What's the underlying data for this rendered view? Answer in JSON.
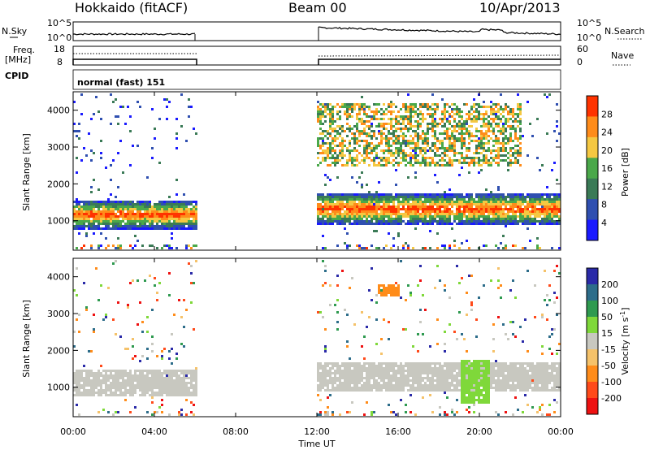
{
  "header": {
    "station": "Hokkaido (fitACF)",
    "beam": "Beam 00",
    "date": "10/Apr/2013"
  },
  "strips": {
    "nsky_label": "N.Sky",
    "nsearch_label": "N.Search",
    "noise_ticks": [
      "10^5",
      "10^0"
    ],
    "freq_label_1": "Freq.",
    "freq_label_2": "[MHz]",
    "freq_ticks": [
      "18",
      "8"
    ],
    "nave_label": "Nave",
    "nave_ticks": [
      "60",
      "0"
    ],
    "cpid_label": "CPID",
    "cpid_value": "normal (fast) 151"
  },
  "panels": {
    "ylabel": "Slant Range [km]",
    "y_ticks": [
      "1000",
      "2000",
      "3000",
      "4000"
    ],
    "xlabel": "Time UT",
    "x_ticks": [
      "00:00",
      "04:00",
      "08:00",
      "12:00",
      "16:00",
      "20:00",
      "00:00"
    ]
  },
  "power_bar": {
    "label": "Power [dB]",
    "ticks": [
      "4",
      "8",
      "12",
      "16",
      "20",
      "24",
      "28"
    ],
    "colors": [
      "#1a1aff",
      "#2f4fb0",
      "#3a7a56",
      "#4aa84a",
      "#f5c842",
      "#ff8c1a",
      "#ff3300"
    ]
  },
  "velocity_bar": {
    "label": "Velocity [m s",
    "label_sup": "-1",
    "label_end": "]",
    "ticks": [
      "200",
      "100",
      "50",
      "15",
      "-15",
      "-50",
      "-100",
      "-200"
    ],
    "colors": [
      "#2a2aa8",
      "#2d6d8a",
      "#2f9a50",
      "#7fd83a",
      "#c8c8c0",
      "#f5c26a",
      "#ff8c1a",
      "#ff4a1a",
      "#ee1111"
    ]
  },
  "chart_data": [
    {
      "type": "heatmap",
      "title": "Power [dB]",
      "xlabel": "Time UT",
      "ylabel": "Slant Range [km]",
      "xlim": [
        0,
        24
      ],
      "ylim": [
        200,
        4500
      ],
      "data_gaps_hours": [
        [
          6,
          12
        ]
      ],
      "echo_bands": [
        {
          "time_range": [
            0,
            6
          ],
          "range_km": [
            800,
            1600
          ],
          "peak_power_db": 28
        },
        {
          "time_range": [
            12,
            24
          ],
          "range_km": [
            900,
            1800
          ],
          "peak_power_db": 28
        },
        {
          "time_range": [
            12,
            22
          ],
          "range_km": [
            2500,
            4200
          ],
          "peak_power_db": 20
        }
      ]
    },
    {
      "type": "heatmap",
      "title": "Velocity [m s-1]",
      "xlabel": "Time UT",
      "ylabel": "Slant Range [km]",
      "xlim": [
        0,
        24
      ],
      "ylim": [
        200,
        4500
      ],
      "data_gaps_hours": [
        [
          6,
          12
        ]
      ],
      "echo_bands": [
        {
          "time_range": [
            0,
            6
          ],
          "range_km": [
            800,
            1500
          ],
          "velocity_ms": 0
        },
        {
          "time_range": [
            12,
            24
          ],
          "range_km": [
            900,
            1700
          ],
          "velocity_ms": 0
        },
        {
          "time_range": [
            19,
            20.5
          ],
          "range_km": [
            600,
            1800
          ],
          "velocity_ms": 30
        },
        {
          "time_range": [
            15,
            16
          ],
          "range_km": [
            3500,
            3800
          ],
          "velocity_ms": -60
        }
      ]
    }
  ]
}
